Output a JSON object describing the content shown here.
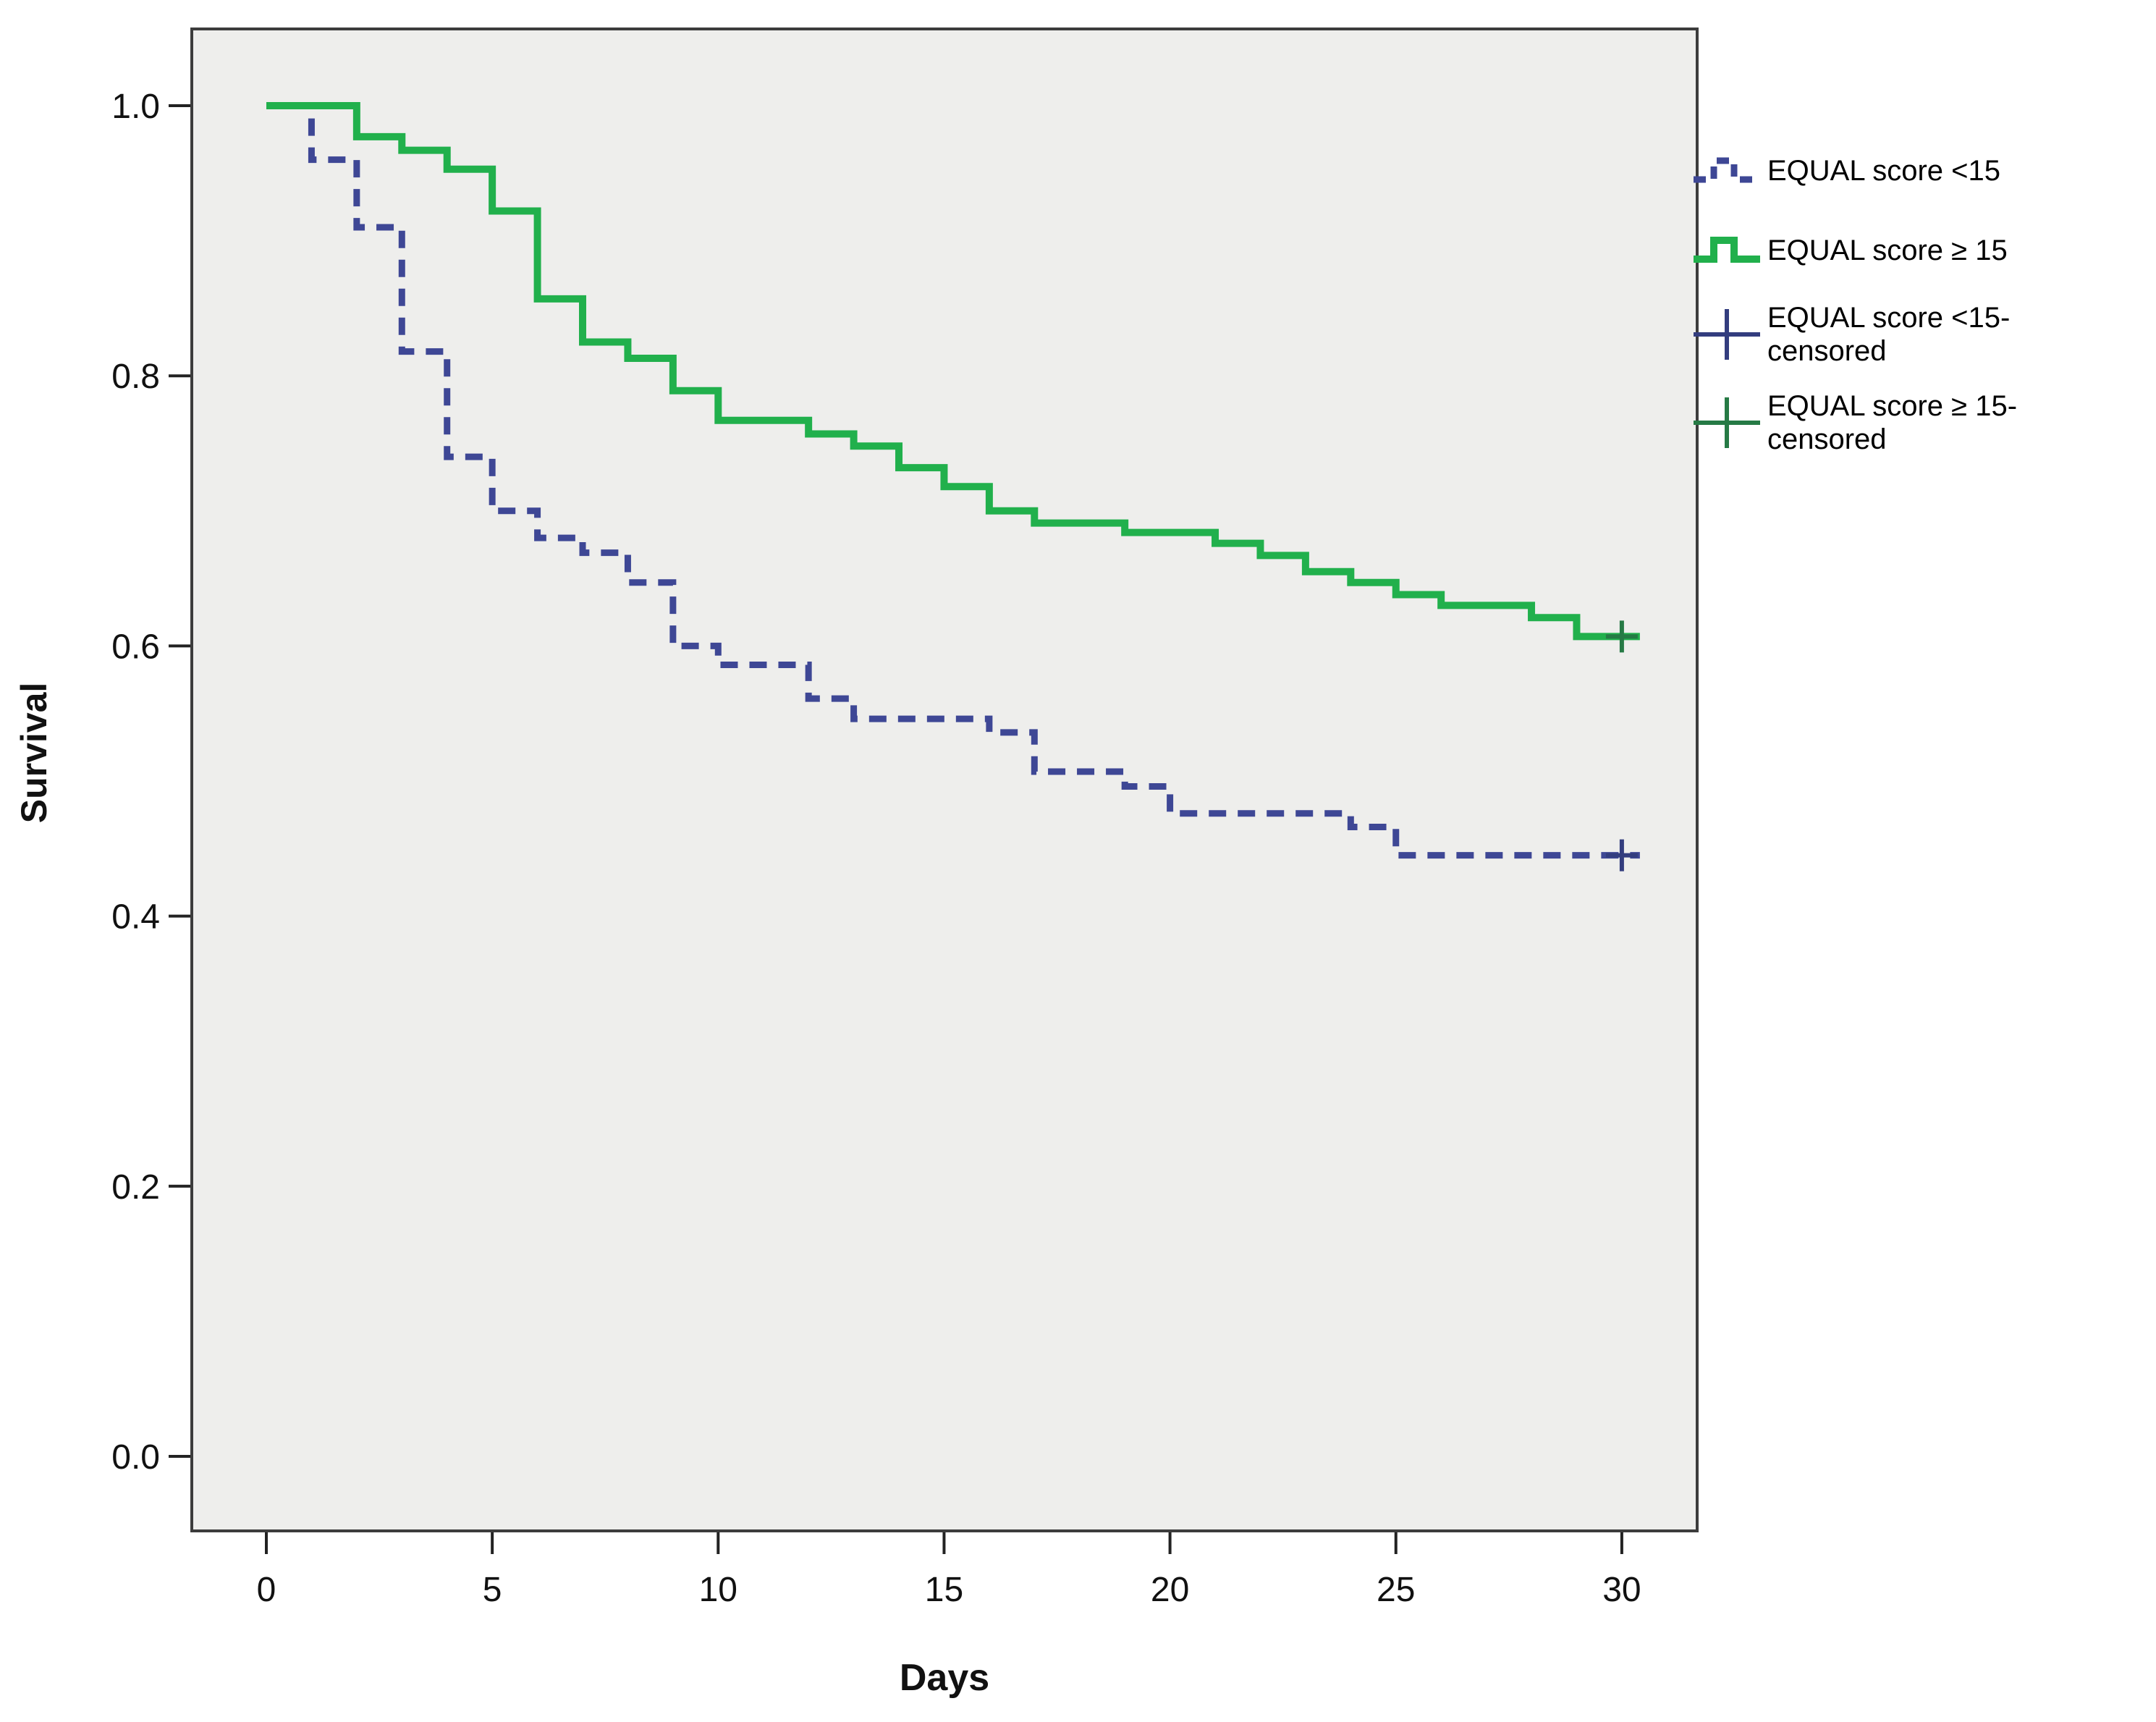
{
  "figure": {
    "xlabel": "Days",
    "ylabel": "Survival"
  },
  "chart_data": {
    "type": "line",
    "subtype": "kaplan-meier-step-survival",
    "xlabel": "Days",
    "ylabel": "Survival",
    "x_ticks": [
      "0",
      "5",
      "10",
      "15",
      "20",
      "25",
      "30"
    ],
    "x_tick_values": [
      0,
      5,
      10,
      15,
      20,
      25,
      30
    ],
    "y_ticks": [
      "0.0",
      "0.2",
      "0.4",
      "0.6",
      "0.8",
      "1.0"
    ],
    "y_tick_values": [
      0.0,
      0.2,
      0.4,
      0.6,
      0.8,
      1.0
    ],
    "xlim": [
      -1.65,
      31.7
    ],
    "ylim": [
      -0.055,
      1.057
    ],
    "x_end": 30.4,
    "grid": false,
    "plot_bg": "#eeeeec",
    "frame_color": "#3c3c3c",
    "legend_position": "right",
    "series": [
      {
        "name": "EQUAL score  <15",
        "color": "#3e4795",
        "censor_color": "#333d7e",
        "style": "dashed",
        "steps": [
          [
            0,
            1.0
          ],
          [
            1,
            0.96
          ],
          [
            2,
            0.91
          ],
          [
            3,
            0.818
          ],
          [
            4,
            0.74
          ],
          [
            5,
            0.7
          ],
          [
            6,
            0.68
          ],
          [
            7,
            0.669
          ],
          [
            8,
            0.647
          ],
          [
            9,
            0.6
          ],
          [
            10,
            0.586
          ],
          [
            12,
            0.561
          ],
          [
            13,
            0.546
          ],
          [
            16,
            0.536
          ],
          [
            17,
            0.507
          ],
          [
            19,
            0.496
          ],
          [
            20,
            0.476
          ],
          [
            24,
            0.466
          ],
          [
            25,
            0.445
          ]
        ],
        "censored": [
          [
            30,
            0.445
          ]
        ]
      },
      {
        "name": "EQUAL score ≥ 15",
        "color": "#21b04c",
        "censor_color": "#267a45",
        "style": "solid",
        "steps": [
          [
            0,
            1.0
          ],
          [
            2,
            0.977
          ],
          [
            3,
            0.967
          ],
          [
            4,
            0.953
          ],
          [
            5,
            0.922
          ],
          [
            6,
            0.857
          ],
          [
            7,
            0.825
          ],
          [
            8,
            0.813
          ],
          [
            9,
            0.789
          ],
          [
            10,
            0.767
          ],
          [
            12,
            0.757
          ],
          [
            13,
            0.748
          ],
          [
            14,
            0.732
          ],
          [
            15,
            0.718
          ],
          [
            16,
            0.7
          ],
          [
            17,
            0.691
          ],
          [
            19,
            0.684
          ],
          [
            21,
            0.676
          ],
          [
            22,
            0.667
          ],
          [
            23,
            0.655
          ],
          [
            24,
            0.647
          ],
          [
            25,
            0.638
          ],
          [
            26,
            0.63
          ],
          [
            28,
            0.621
          ],
          [
            29,
            0.607
          ]
        ],
        "censored": [
          [
            30,
            0.607
          ]
        ]
      }
    ],
    "legend": [
      {
        "label": "EQUAL score  <15",
        "symbol": "dashed-step",
        "color": "#3e4795"
      },
      {
        "label": "EQUAL score ≥ 15",
        "symbol": "solid-step",
        "color": "#21b04c"
      },
      {
        "label": "EQUAL score  <15-censored",
        "symbol": "plus",
        "color": "#333d7e"
      },
      {
        "label": "EQUAL score ≥ 15-censored",
        "symbol": "plus",
        "color": "#267a45"
      }
    ]
  }
}
